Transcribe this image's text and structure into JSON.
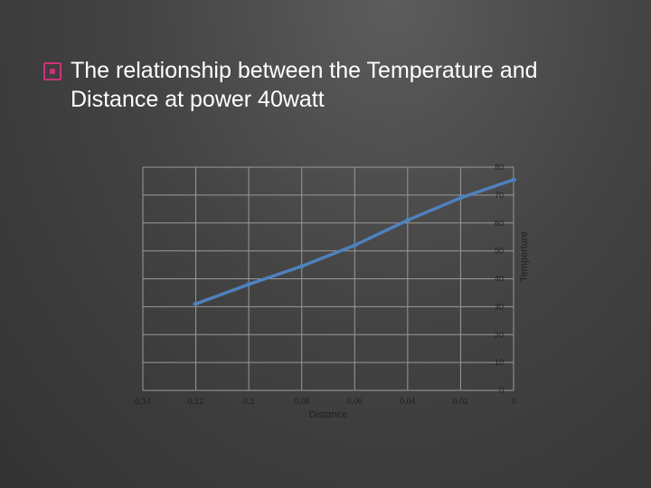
{
  "slide": {
    "title": "The relationship between the Temperature and Distance at power 40watt",
    "bullet_color": "#d0307a"
  },
  "chart_data": {
    "type": "line",
    "title": "",
    "xlabel": "Distance",
    "ylabel": "Temperture",
    "x_reversed": true,
    "xlim": [
      0.14,
      0
    ],
    "ylim": [
      0,
      80
    ],
    "x_tick_labels": [
      "0,14",
      "0,12",
      "0,1",
      "0,08",
      "0,06",
      "0,04",
      "0,02",
      "0"
    ],
    "x_tick_values": [
      0.14,
      0.12,
      0.1,
      0.08,
      0.06,
      0.04,
      0.02,
      0
    ],
    "y_ticks": [
      0,
      10,
      20,
      30,
      40,
      50,
      60,
      70,
      80
    ],
    "y_axis_position": "right",
    "grid": true,
    "series": [
      {
        "color": "#4f81bd",
        "x": [
          0.12,
          0.1,
          0.08,
          0.06,
          0.04,
          0.02,
          0
        ],
        "y": [
          31,
          38,
          44.5,
          52,
          61,
          69,
          75.5
        ]
      }
    ]
  }
}
